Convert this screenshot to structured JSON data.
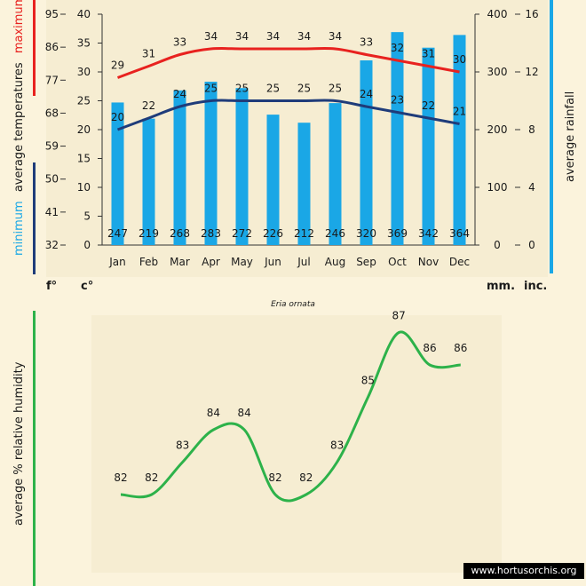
{
  "chart_data": [
    {
      "type": "bar+line",
      "title": "Eria ornata",
      "categories": [
        "Jan",
        "Feb",
        "Mar",
        "Apr",
        "May",
        "Jun",
        "Jul",
        "Aug",
        "Sep",
        "Oct",
        "Nov",
        "Dec"
      ],
      "rainfall": {
        "name": "average rainfall",
        "unit": "mm.",
        "values": [
          247,
          219,
          268,
          283,
          272,
          226,
          212,
          246,
          320,
          369,
          342,
          364
        ]
      },
      "max_temp": {
        "name": "maximum",
        "unit": "c°",
        "values": [
          29,
          31,
          33,
          34,
          34,
          34,
          34,
          34,
          33,
          32,
          31,
          30
        ]
      },
      "min_temp": {
        "name": "minimum",
        "unit": "c°",
        "values": [
          20,
          22,
          24,
          25,
          25,
          25,
          25,
          25,
          24,
          23,
          22,
          21
        ]
      },
      "axes": {
        "celsius_ticks": [
          "0",
          "5",
          "10",
          "15",
          "20",
          "25",
          "30",
          "35",
          "40"
        ],
        "fahrenheit_ticks": [
          "32",
          "41",
          "50",
          "59",
          "68",
          "77",
          "86",
          "95"
        ],
        "mm_ticks": [
          "0",
          "100",
          "200",
          "300",
          "400"
        ],
        "inch_ticks": [
          "0",
          "4",
          "8",
          "12",
          "16"
        ],
        "celsius_range": [
          0,
          40
        ],
        "rainfall_range": [
          0,
          400
        ]
      },
      "labels": {
        "left_axis_maximum": "maximum",
        "left_axis_middle": "average  temperatures",
        "left_axis_minimum": "minimum",
        "right_axis": "average  rainfall",
        "unit_f": "f°",
        "unit_c": "c°",
        "unit_mm": "mm.",
        "unit_inc": "inc."
      },
      "colors": {
        "bars": "#1aa7e6",
        "max_line": "#e8221f",
        "min_line": "#1f3c7a"
      }
    },
    {
      "type": "line",
      "categories": [
        "Jan",
        "Feb",
        "Mar",
        "Apr",
        "May",
        "Jun",
        "Jul",
        "Aug",
        "Sep",
        "Oct",
        "Nov",
        "Dec"
      ],
      "values": [
        82,
        82,
        83,
        84,
        84,
        82,
        82,
        83,
        85,
        87,
        86,
        86
      ],
      "ylabel": "average %  relative humidity",
      "color": "#2db24a"
    }
  ],
  "credit": "www.hortusorchis.org"
}
